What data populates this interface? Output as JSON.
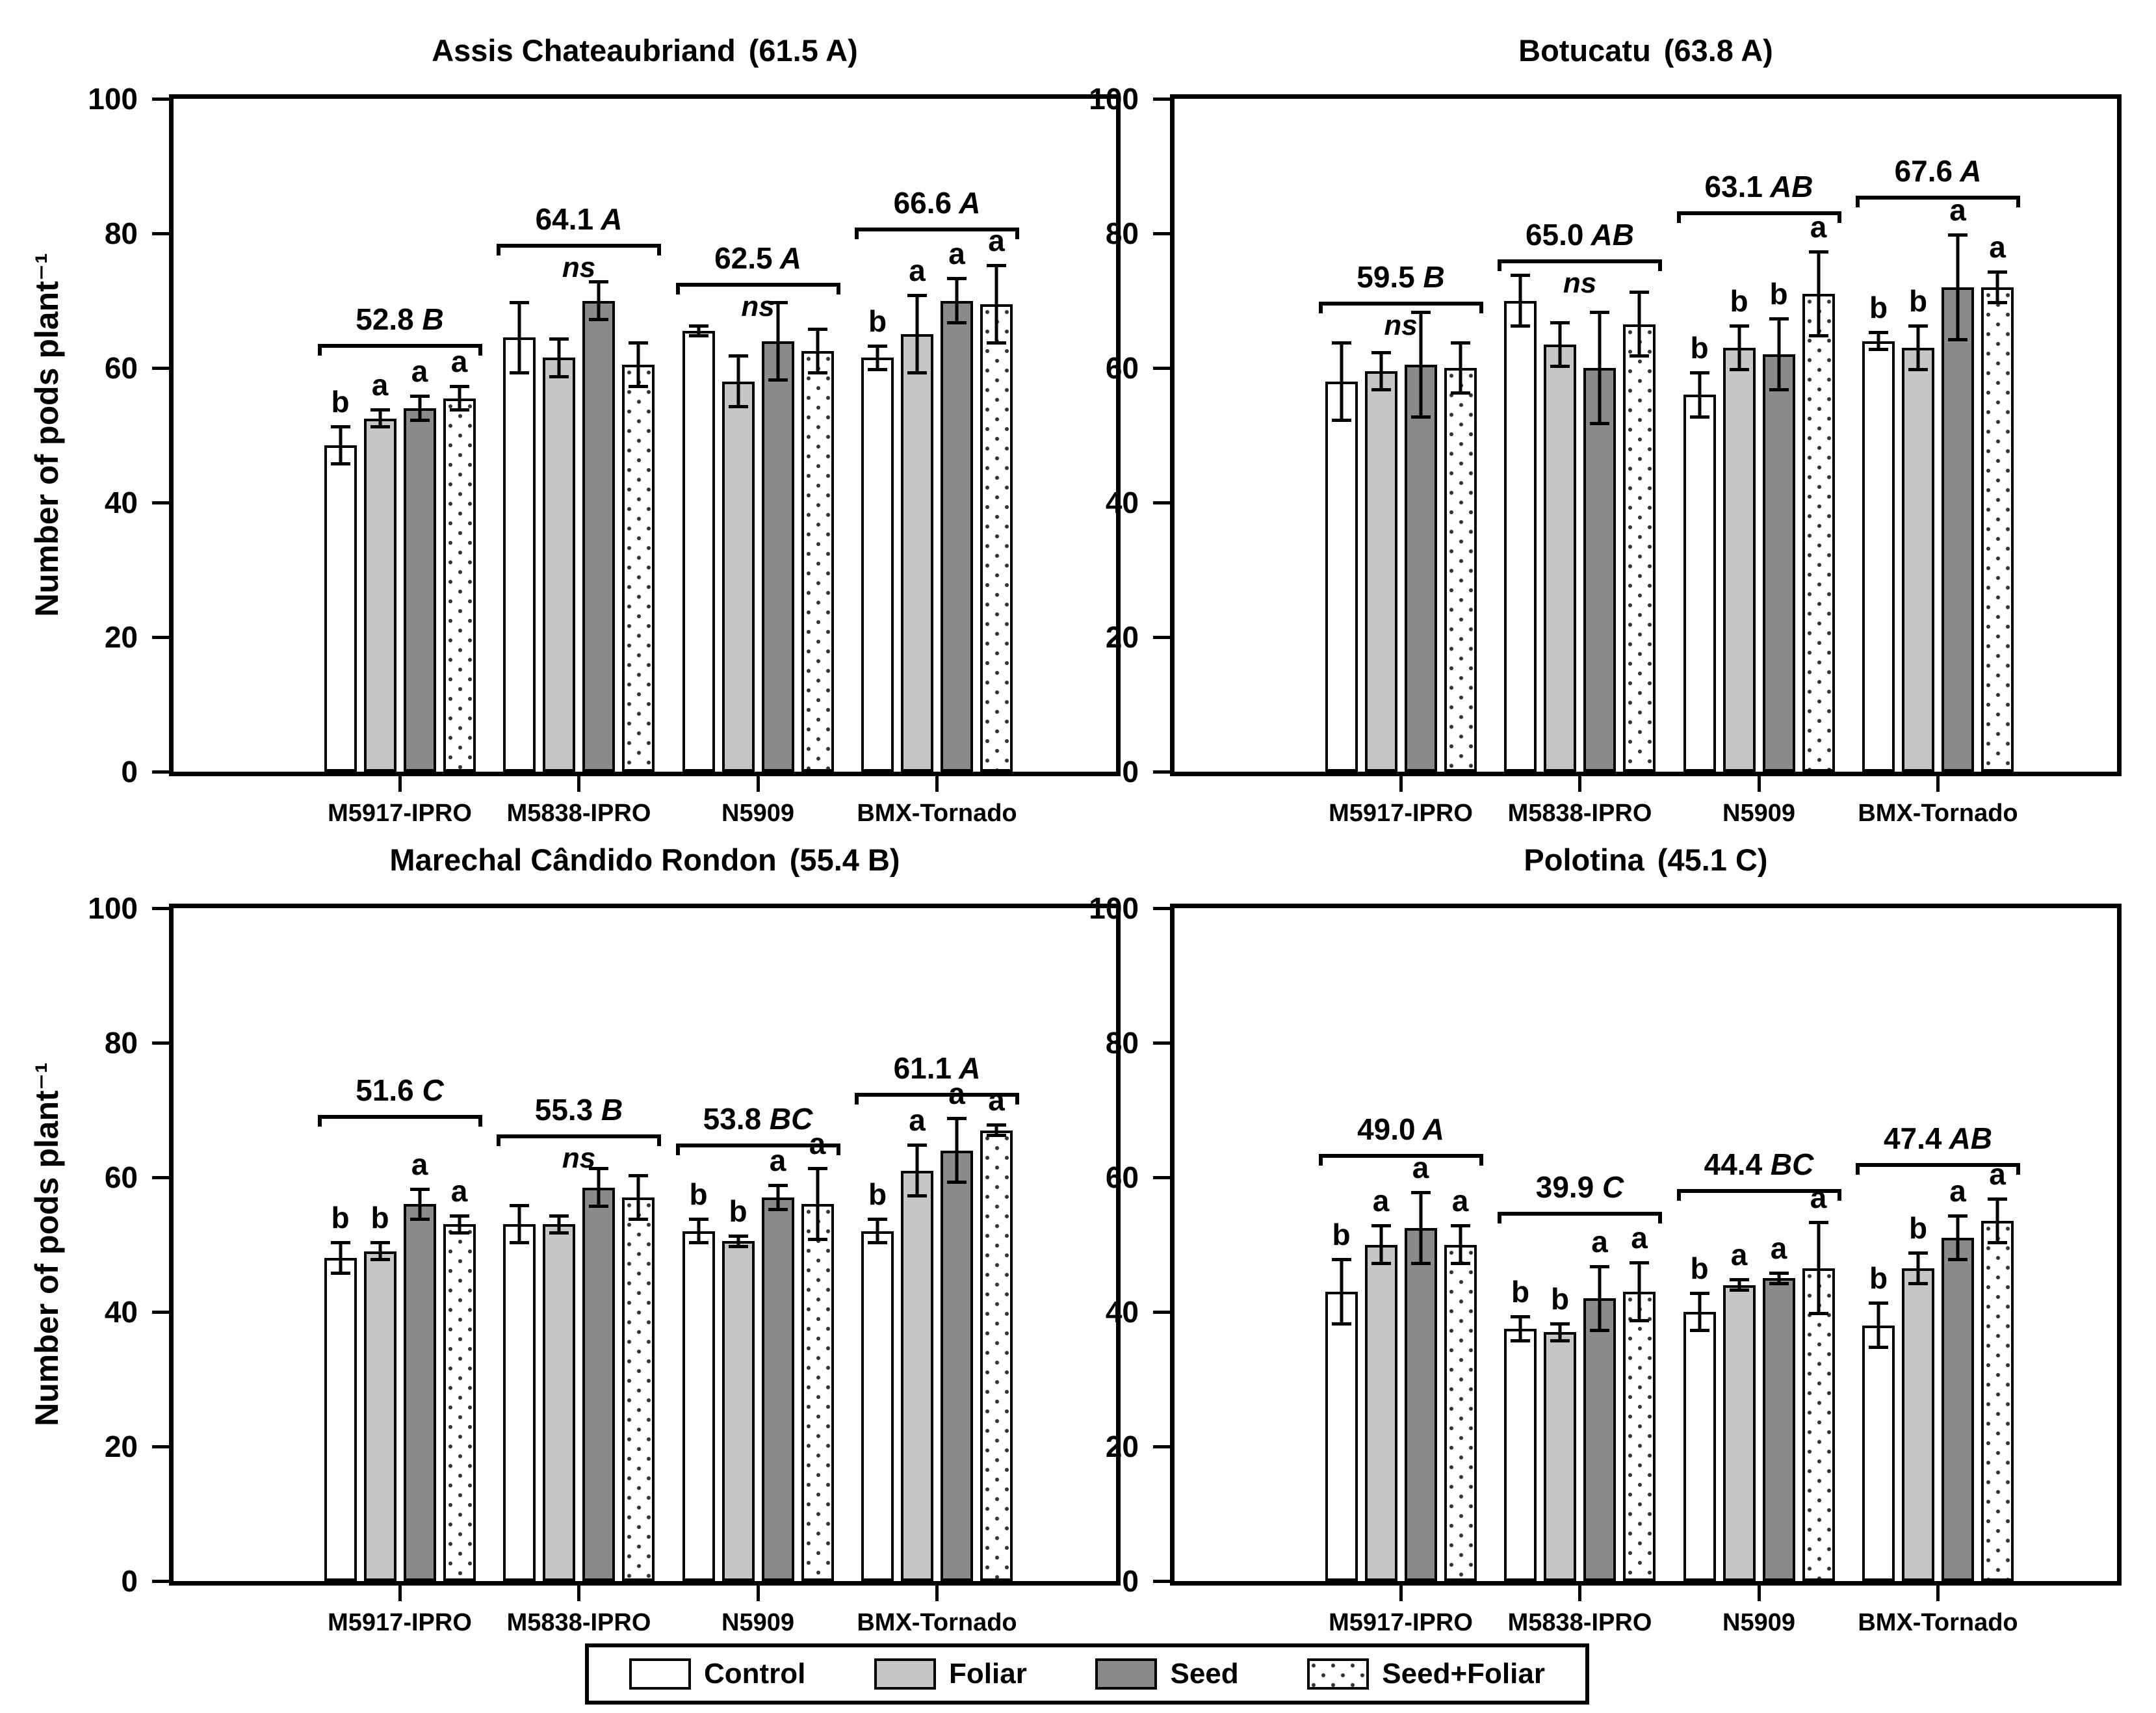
{
  "figure": {
    "y_axis": {
      "label": "Number of pods plant⁻¹",
      "ticks": [
        0,
        20,
        40,
        60,
        80,
        100
      ],
      "max": 100
    },
    "treatments": [
      {
        "name": "Control",
        "fill": "#ffffff",
        "pattern": "solid"
      },
      {
        "name": "Foliar",
        "fill": "#c6c6c6",
        "pattern": "solid"
      },
      {
        "name": "Seed",
        "fill": "#8a8a8a",
        "pattern": "solid"
      },
      {
        "name": "Seed+Foliar",
        "fill": "#ffffff",
        "pattern": "dots"
      }
    ],
    "legend": {
      "position": "bottom"
    },
    "frame_color": "#000000"
  },
  "chart_data": [
    {
      "type": "bar",
      "title": "Assis Chateaubriand",
      "title_stat": "(61.5 A)",
      "ylabel": "Number of pods plant⁻¹",
      "ylim": [
        0,
        100
      ],
      "categories": [
        "M5917-IPRO",
        "M5838-IPRO",
        "N5909",
        "BMX-Tornado"
      ],
      "groups": [
        {
          "category": "M5917-IPRO",
          "mean_label": "52.8",
          "mean_letter": "B",
          "ns": false,
          "bracket_y": 63.6,
          "bars": [
            {
              "treatment": "Control",
              "value": 48.5,
              "error": 3,
              "letter": "b"
            },
            {
              "treatment": "Foliar",
              "value": 52.5,
              "error": 1.5,
              "letter": "a"
            },
            {
              "treatment": "Seed",
              "value": 54,
              "error": 2,
              "letter": "a"
            },
            {
              "treatment": "Seed+Foliar",
              "value": 55.5,
              "error": 2,
              "letter": "a"
            }
          ]
        },
        {
          "category": "M5838-IPRO",
          "mean_label": "64.1",
          "mean_letter": "A",
          "ns": true,
          "bracket_y": 78.5,
          "bars": [
            {
              "treatment": "Control",
              "value": 64.5,
              "error": 5.5,
              "letter": ""
            },
            {
              "treatment": "Foliar",
              "value": 61.5,
              "error": 3,
              "letter": ""
            },
            {
              "treatment": "Seed",
              "value": 70,
              "error": 3,
              "letter": ""
            },
            {
              "treatment": "Seed+Foliar",
              "value": 60.5,
              "error": 3.5,
              "letter": ""
            }
          ]
        },
        {
          "category": "N5909",
          "mean_label": "62.5",
          "mean_letter": "A",
          "ns": true,
          "bracket_y": 72.7,
          "bars": [
            {
              "treatment": "Control",
              "value": 65.5,
              "error": 1,
              "letter": ""
            },
            {
              "treatment": "Foliar",
              "value": 58,
              "error": 4,
              "letter": ""
            },
            {
              "treatment": "Seed",
              "value": 64,
              "error": 6,
              "letter": ""
            },
            {
              "treatment": "Seed+Foliar",
              "value": 62.5,
              "error": 3.5,
              "letter": ""
            }
          ]
        },
        {
          "category": "BMX-Tornado",
          "mean_label": "66.6",
          "mean_letter": "A",
          "ns": false,
          "bracket_y": 80.9,
          "bars": [
            {
              "treatment": "Control",
              "value": 61.5,
              "error": 2,
              "letter": "b"
            },
            {
              "treatment": "Foliar",
              "value": 65,
              "error": 6,
              "letter": "a"
            },
            {
              "treatment": "Seed",
              "value": 70,
              "error": 3.5,
              "letter": "a"
            },
            {
              "treatment": "Seed+Foliar",
              "value": 69.5,
              "error": 6,
              "letter": "a"
            }
          ]
        }
      ]
    },
    {
      "type": "bar",
      "title": "Botucatu",
      "title_stat": "(63.8 A)",
      "ylabel": "",
      "ylim": [
        0,
        100
      ],
      "categories": [
        "M5917-IPRO",
        "M5838-IPRO",
        "N5909",
        "BMX-Tornado"
      ],
      "groups": [
        {
          "category": "M5917-IPRO",
          "mean_label": "59.5",
          "mean_letter": "B",
          "ns": true,
          "bracket_y": 69.9,
          "bars": [
            {
              "treatment": "Control",
              "value": 58,
              "error": 6,
              "letter": ""
            },
            {
              "treatment": "Foliar",
              "value": 59.5,
              "error": 3,
              "letter": ""
            },
            {
              "treatment": "Seed",
              "value": 60.5,
              "error": 8,
              "letter": ""
            },
            {
              "treatment": "Seed+Foliar",
              "value": 60,
              "error": 4,
              "letter": ""
            }
          ]
        },
        {
          "category": "M5838-IPRO",
          "mean_label": "65.0",
          "mean_letter": "AB",
          "ns": true,
          "bracket_y": 76.1,
          "bars": [
            {
              "treatment": "Control",
              "value": 70,
              "error": 4,
              "letter": ""
            },
            {
              "treatment": "Foliar",
              "value": 63.5,
              "error": 3.5,
              "letter": ""
            },
            {
              "treatment": "Seed",
              "value": 60,
              "error": 8.5,
              "letter": ""
            },
            {
              "treatment": "Seed+Foliar",
              "value": 66.5,
              "error": 5,
              "letter": ""
            }
          ]
        },
        {
          "category": "N5909",
          "mean_label": "63.1",
          "mean_letter": "AB",
          "ns": false,
          "bracket_y": 83.3,
          "bars": [
            {
              "treatment": "Control",
              "value": 56,
              "error": 3.5,
              "letter": "b"
            },
            {
              "treatment": "Foliar",
              "value": 63,
              "error": 3.5,
              "letter": "b"
            },
            {
              "treatment": "Seed",
              "value": 62,
              "error": 5.5,
              "letter": "b"
            },
            {
              "treatment": "Seed+Foliar",
              "value": 71,
              "error": 6.5,
              "letter": "a"
            }
          ]
        },
        {
          "category": "BMX-Tornado",
          "mean_label": "67.6",
          "mean_letter": "A",
          "ns": false,
          "bracket_y": 85.6,
          "bars": [
            {
              "treatment": "Control",
              "value": 64,
              "error": 1.5,
              "letter": "b"
            },
            {
              "treatment": "Foliar",
              "value": 63,
              "error": 3.5,
              "letter": "b"
            },
            {
              "treatment": "Seed",
              "value": 72,
              "error": 8,
              "letter": "a"
            },
            {
              "treatment": "Seed+Foliar",
              "value": 72,
              "error": 2.5,
              "letter": "a"
            }
          ]
        }
      ]
    },
    {
      "type": "bar",
      "title": "Marechal Cândido Rondon",
      "title_stat": "(55.4 B)",
      "ylabel": "Number of pods plant⁻¹",
      "ylim": [
        0,
        100
      ],
      "categories": [
        "M5917-IPRO",
        "M5838-IPRO",
        "N5909",
        "BMX-Tornado"
      ],
      "groups": [
        {
          "category": "M5917-IPRO",
          "mean_label": "51.6",
          "mean_letter": "C",
          "ns": false,
          "bracket_y": 69.3,
          "bars": [
            {
              "treatment": "Control",
              "value": 48,
              "error": 2.5,
              "letter": "b"
            },
            {
              "treatment": "Foliar",
              "value": 49,
              "error": 1.5,
              "letter": "b"
            },
            {
              "treatment": "Seed",
              "value": 56,
              "error": 2.5,
              "letter": "a"
            },
            {
              "treatment": "Seed+Foliar",
              "value": 53,
              "error": 1.5,
              "letter": "a"
            }
          ]
        },
        {
          "category": "M5838-IPRO",
          "mean_label": "55.3",
          "mean_letter": "B",
          "ns": true,
          "bracket_y": 66.4,
          "bars": [
            {
              "treatment": "Control",
              "value": 53,
              "error": 3,
              "letter": ""
            },
            {
              "treatment": "Foliar",
              "value": 53,
              "error": 1.5,
              "letter": ""
            },
            {
              "treatment": "Seed",
              "value": 58.5,
              "error": 3,
              "letter": ""
            },
            {
              "treatment": "Seed+Foliar",
              "value": 57,
              "error": 3.5,
              "letter": ""
            }
          ]
        },
        {
          "category": "N5909",
          "mean_label": "53.8",
          "mean_letter": "BC",
          "ns": false,
          "bracket_y": 65.0,
          "bars": [
            {
              "treatment": "Control",
              "value": 52,
              "error": 2,
              "letter": "b"
            },
            {
              "treatment": "Foliar",
              "value": 50.5,
              "error": 1,
              "letter": "b"
            },
            {
              "treatment": "Seed",
              "value": 57,
              "error": 2,
              "letter": "a"
            },
            {
              "treatment": "Seed+Foliar",
              "value": 56,
              "error": 5.5,
              "letter": "a"
            }
          ]
        },
        {
          "category": "BMX-Tornado",
          "mean_label": "61.1",
          "mean_letter": "A",
          "ns": false,
          "bracket_y": 72.6,
          "bars": [
            {
              "treatment": "Control",
              "value": 52,
              "error": 2,
              "letter": "b"
            },
            {
              "treatment": "Foliar",
              "value": 61,
              "error": 4,
              "letter": "a"
            },
            {
              "treatment": "Seed",
              "value": 64,
              "error": 5,
              "letter": "a"
            },
            {
              "treatment": "Seed+Foliar",
              "value": 67,
              "error": 1,
              "letter": "a"
            }
          ]
        }
      ]
    },
    {
      "type": "bar",
      "title": "Polotina",
      "title_stat": "(45.1 C)",
      "ylabel": "",
      "ylim": [
        0,
        100
      ],
      "categories": [
        "M5917-IPRO",
        "M5838-IPRO",
        "N5909",
        "BMX-Tornado"
      ],
      "groups": [
        {
          "category": "M5917-IPRO",
          "mean_label": "49.0",
          "mean_letter": "A",
          "ns": false,
          "bracket_y": 63.5,
          "bars": [
            {
              "treatment": "Control",
              "value": 43,
              "error": 5,
              "letter": "b"
            },
            {
              "treatment": "Foliar",
              "value": 50,
              "error": 3,
              "letter": "a"
            },
            {
              "treatment": "Seed",
              "value": 52.5,
              "error": 5.5,
              "letter": "a"
            },
            {
              "treatment": "Seed+Foliar",
              "value": 50,
              "error": 3,
              "letter": "a"
            }
          ]
        },
        {
          "category": "M5838-IPRO",
          "mean_label": "39.9",
          "mean_letter": "C",
          "ns": false,
          "bracket_y": 54.9,
          "bars": [
            {
              "treatment": "Control",
              "value": 37.5,
              "error": 2,
              "letter": "b"
            },
            {
              "treatment": "Foliar",
              "value": 37,
              "error": 1.5,
              "letter": "b"
            },
            {
              "treatment": "Seed",
              "value": 42,
              "error": 5,
              "letter": "a"
            },
            {
              "treatment": "Seed+Foliar",
              "value": 43,
              "error": 4.5,
              "letter": "a"
            }
          ]
        },
        {
          "category": "N5909",
          "mean_label": "44.4",
          "mean_letter": "BC",
          "ns": false,
          "bracket_y": 58.3,
          "bars": [
            {
              "treatment": "Control",
              "value": 40,
              "error": 3,
              "letter": "b"
            },
            {
              "treatment": "Foliar",
              "value": 44,
              "error": 1,
              "letter": "a"
            },
            {
              "treatment": "Seed",
              "value": 45,
              "error": 1,
              "letter": "a"
            },
            {
              "treatment": "Seed+Foliar",
              "value": 46.5,
              "error": 7,
              "letter": "a"
            }
          ]
        },
        {
          "category": "BMX-Tornado",
          "mean_label": "47.4",
          "mean_letter": "AB",
          "ns": false,
          "bracket_y": 62.1,
          "bars": [
            {
              "treatment": "Control",
              "value": 38,
              "error": 3.5,
              "letter": "b"
            },
            {
              "treatment": "Foliar",
              "value": 46.5,
              "error": 2.5,
              "letter": "b"
            },
            {
              "treatment": "Seed",
              "value": 51,
              "error": 3.5,
              "letter": "a"
            },
            {
              "treatment": "Seed+Foliar",
              "value": 53.5,
              "error": 3.5,
              "letter": "a"
            }
          ]
        }
      ]
    }
  ]
}
